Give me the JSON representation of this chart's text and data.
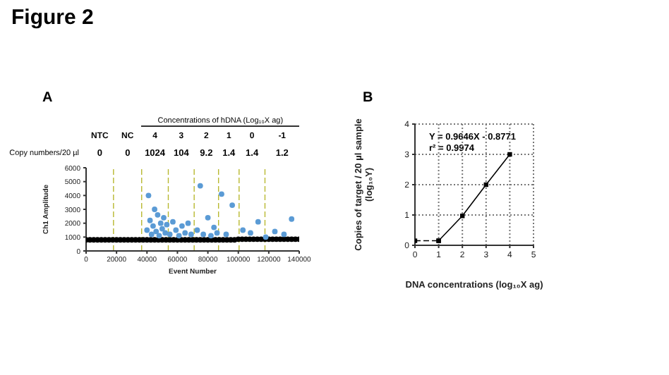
{
  "chart_data": [
    {
      "type": "scatter",
      "title": "Figure 2",
      "subtitle": "A",
      "xlabel": "Event Number",
      "ylabel": "Ch1 Amplitude",
      "xlim": [
        0,
        140000
      ],
      "xticks": [
        0,
        20000,
        40000,
        60000,
        80000,
        100000,
        120000,
        140000
      ],
      "ylim": [
        0,
        6000
      ],
      "yticks": [
        0,
        1000,
        2000,
        3000,
        4000,
        5000,
        6000
      ],
      "marker": "circle",
      "annotations": [
        "Concentrations of hDNA (Log₁₀X ag)",
        "NTC",
        "NC",
        "4",
        "3",
        "2",
        "1",
        "0",
        "-1",
        "Copy numbers/20 µl",
        "0",
        "0",
        "1024",
        "104",
        "9.2",
        "1.4",
        "1.4",
        "1.2"
      ],
      "ref_lines": [
        {
          "axis": "x",
          "value": 18000,
          "color": "#b8b830",
          "line_style": "dashed"
        },
        {
          "axis": "x",
          "value": 36500,
          "color": "#b8b830",
          "line_style": "dashed"
        },
        {
          "axis": "x",
          "value": 54000,
          "color": "#b8b830",
          "line_style": "dashed"
        },
        {
          "axis": "x",
          "value": 71000,
          "color": "#b8b830",
          "line_style": "dashed"
        },
        {
          "axis": "x",
          "value": 87000,
          "color": "#b8b830",
          "line_style": "dashed"
        },
        {
          "axis": "x",
          "value": 100500,
          "color": "#b8b830",
          "line_style": "dashed"
        },
        {
          "axis": "x",
          "value": 117500,
          "color": "#b8b830",
          "line_style": "dashed"
        }
      ],
      "series": [
        {
          "color": "#000000",
          "x": [
            0,
            2500,
            5000,
            7500,
            10000,
            12500,
            15000,
            17500,
            20000,
            22500,
            25000,
            27500,
            30000,
            32500,
            35000,
            37500,
            40000,
            42500,
            45000,
            47500,
            50000,
            52500,
            55000,
            57500,
            60000,
            62500,
            65000,
            67500,
            70000,
            72500,
            75000,
            77500,
            80000,
            82500,
            85000,
            87500,
            90000,
            92500,
            95000,
            97500,
            100000,
            102500,
            105000,
            107500,
            110000,
            112500,
            115000,
            117500,
            120000,
            122500,
            125000,
            127500,
            130000,
            132500,
            135000,
            137500,
            140000
          ],
          "values": [
            800,
            800,
            800,
            800,
            800,
            800,
            800,
            800,
            800,
            800,
            800,
            800,
            800,
            800,
            800,
            800,
            800,
            800,
            800,
            800,
            800,
            800,
            800,
            800,
            800,
            800,
            800,
            800,
            800,
            800,
            800,
            800,
            800,
            800,
            800,
            800,
            800,
            800,
            800,
            800,
            850,
            850,
            850,
            850,
            850,
            850,
            850,
            850,
            850,
            850,
            850,
            850,
            850,
            850,
            850,
            850,
            850
          ]
        },
        {
          "color": "#5b9bd5",
          "x": [
            40000,
            41000,
            42000,
            43000,
            44000,
            45000,
            46000,
            47000,
            48000,
            49000,
            50000,
            51000,
            52000,
            53000,
            55000,
            57000,
            59000,
            61000,
            63000,
            65000,
            67000,
            69000,
            73000,
            75000,
            77000,
            80000,
            82000,
            84000,
            86000,
            89000,
            92000,
            96000,
            103000,
            108000,
            113000,
            118000,
            124000,
            130000,
            135000
          ],
          "values": [
            1500,
            4000,
            2200,
            1200,
            1800,
            3000,
            1400,
            2600,
            1100,
            2000,
            1600,
            2400,
            1300,
            1900,
            1200,
            2100,
            1500,
            1100,
            1800,
            1300,
            2000,
            1200,
            1500,
            4700,
            1200,
            2400,
            1100,
            1700,
            1300,
            4100,
            1200,
            3300,
            1500,
            1300,
            2100,
            1000,
            1400,
            1200,
            2300
          ]
        }
      ]
    },
    {
      "type": "line",
      "title": "B",
      "xlabel": "DNA concentrations (log₁₀X ag)",
      "ylabel": "Copies of target / 20 µl sample (log₁₀Y)",
      "xlim": [
        0,
        5
      ],
      "xticks": [
        0,
        1,
        2,
        3,
        4,
        5
      ],
      "ylim": [
        0,
        4
      ],
      "yticks": [
        0,
        1,
        2,
        3,
        4
      ],
      "grid": true,
      "marker": "square",
      "annotations": [
        "Y = 0.9646X - 0.8771",
        "r² = 0.9974"
      ],
      "series": [
        {
          "color": "#000000",
          "line_style": "dashed",
          "x": [
            0,
            1
          ],
          "values": [
            0.15,
            0.15
          ]
        },
        {
          "color": "#000000",
          "line_style": "solid",
          "x": [
            1,
            2,
            3,
            4
          ],
          "values": [
            0.15,
            0.97,
            2.0,
            3.0
          ]
        }
      ]
    }
  ]
}
